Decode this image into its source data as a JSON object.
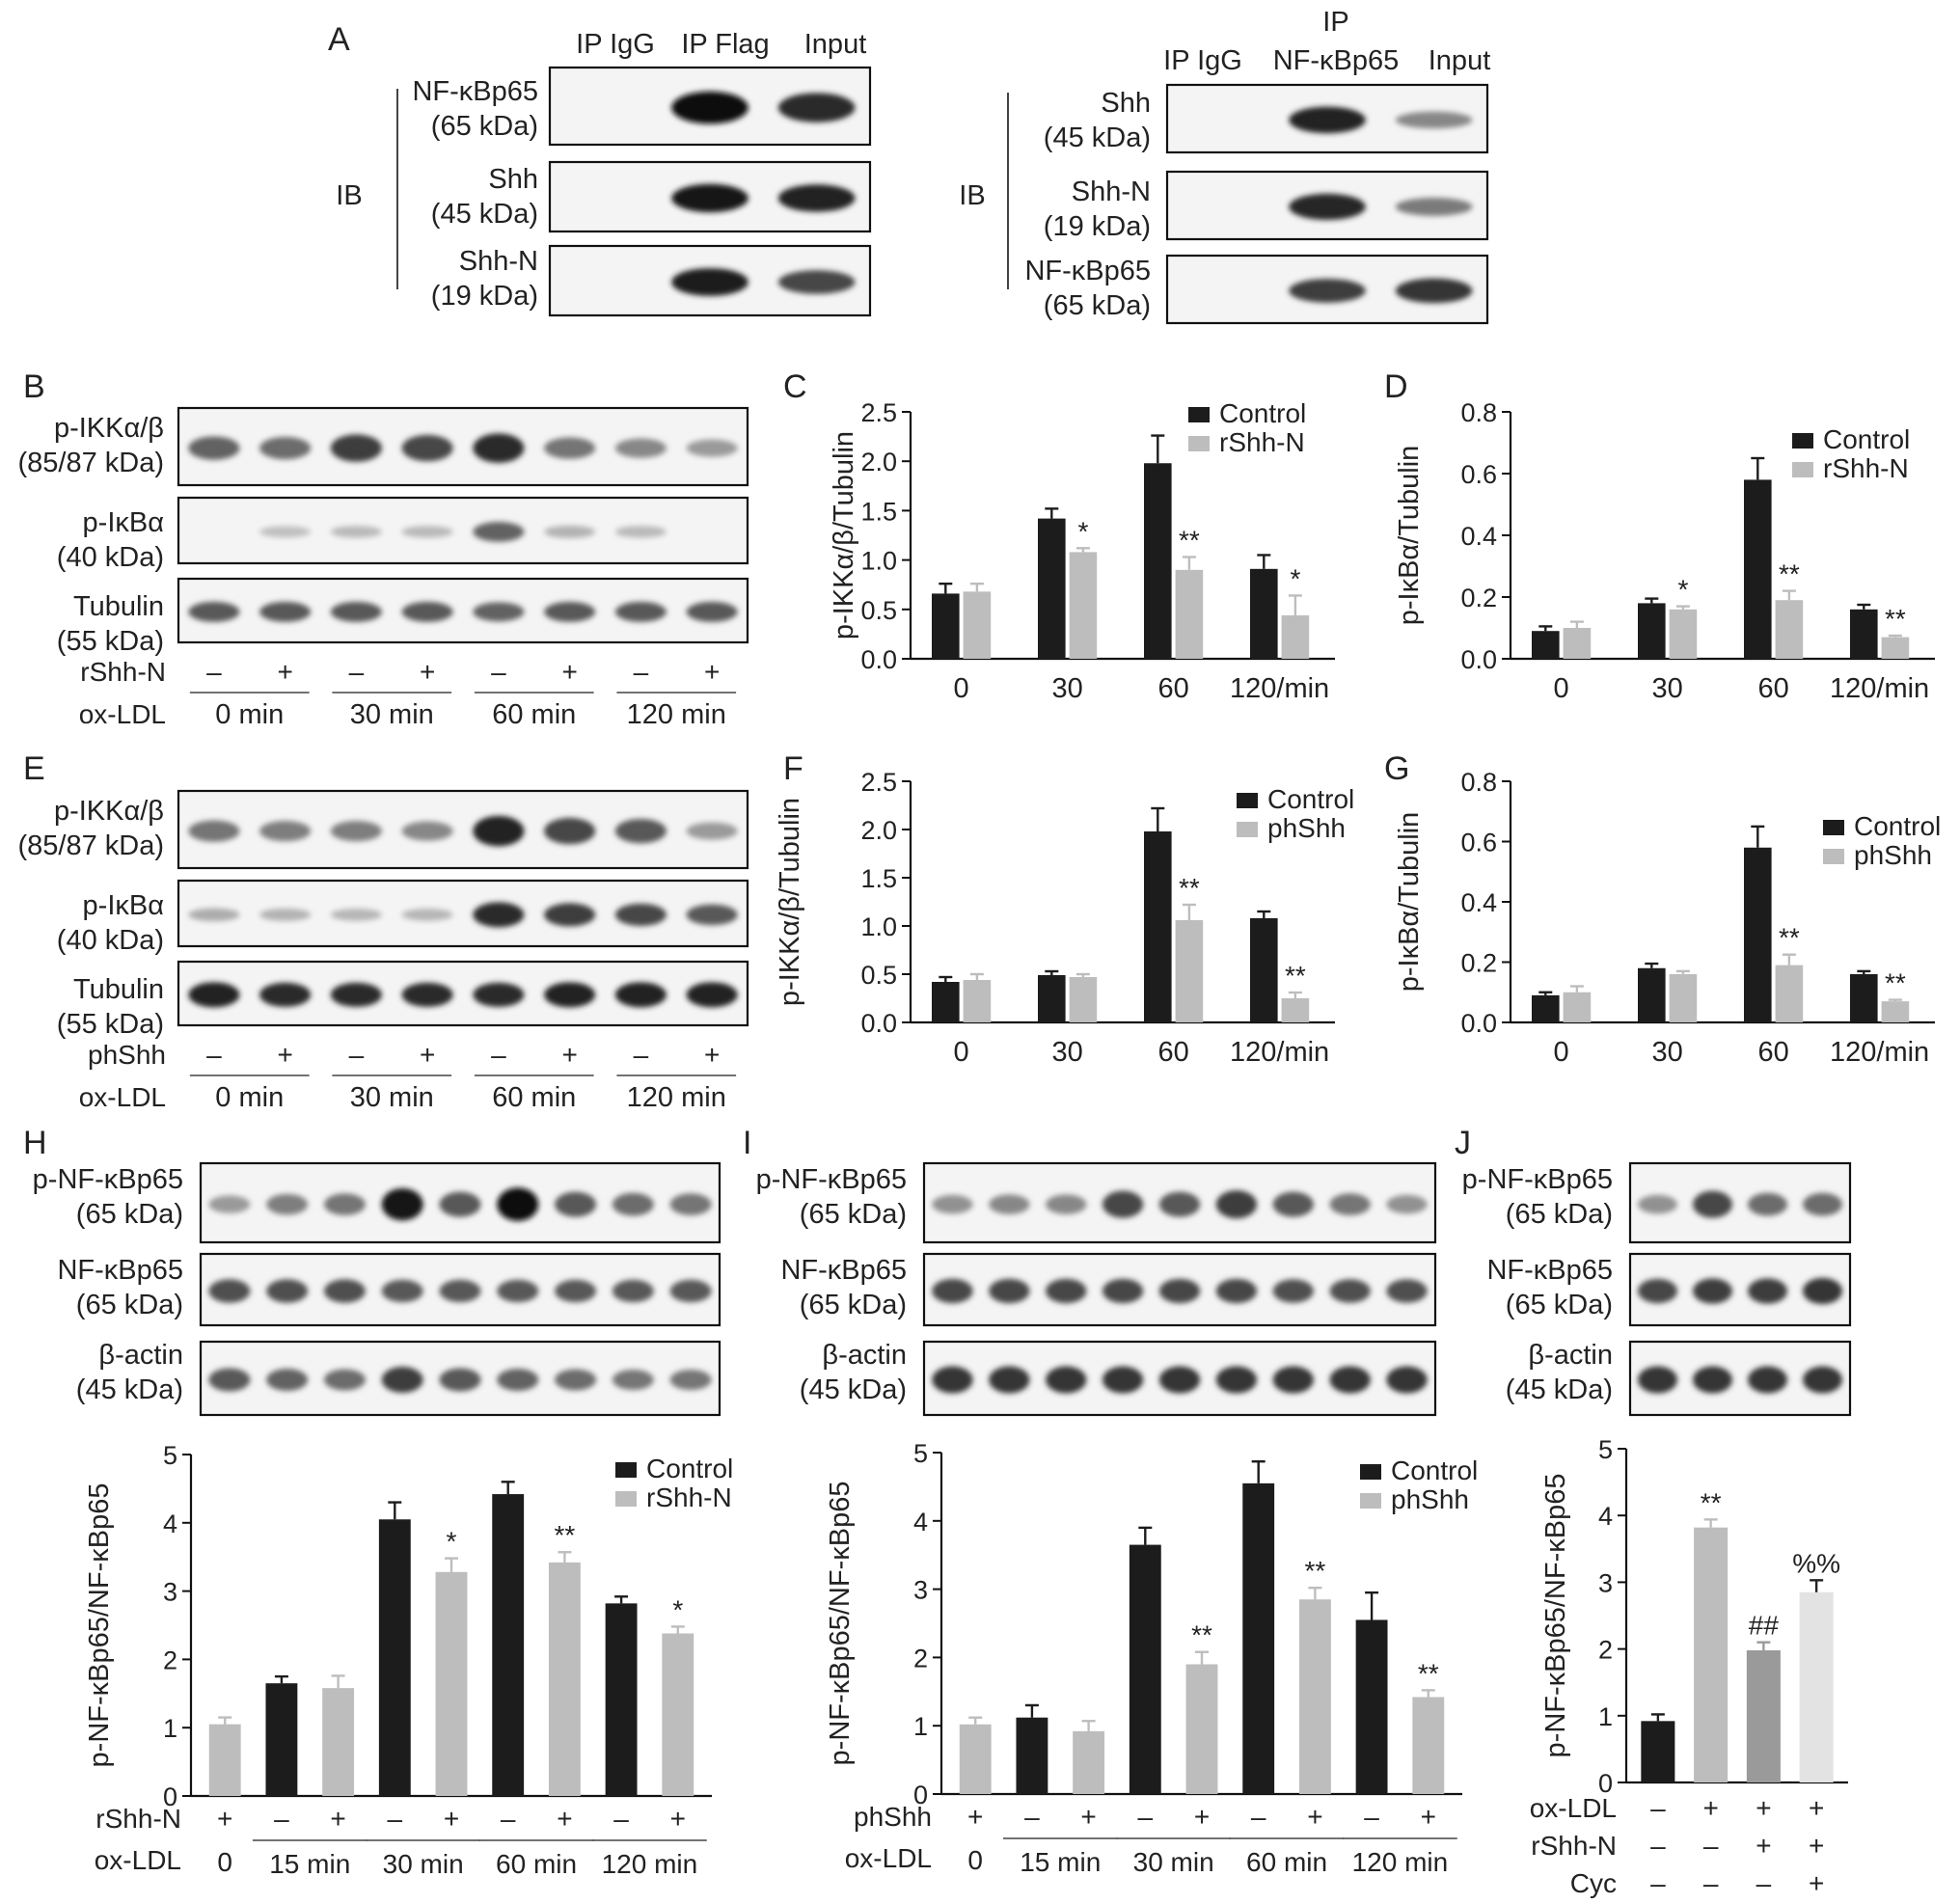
{
  "panel_letters": [
    "A",
    "B",
    "C",
    "D",
    "E",
    "F",
    "G",
    "H",
    "I",
    "J"
  ],
  "panel_a": {
    "left": {
      "headers": [
        "IP IgG",
        "IP Flag",
        "Input"
      ],
      "ib_label": "IB",
      "rows": [
        {
          "name": "NF-κBp65",
          "kda": "(65 kDa)"
        },
        {
          "name": "Shh",
          "kda": "(45 kDa)"
        },
        {
          "name": "Shh-N",
          "kda": "(19 kDa)"
        }
      ]
    },
    "right": {
      "headers": [
        "IP IgG",
        "IP",
        "NF-κBp65",
        "Input"
      ],
      "ib_label": "IB",
      "rows": [
        {
          "name": "Shh",
          "kda": "(45 kDa)"
        },
        {
          "name": "Shh-N",
          "kda": "(19 kDa)"
        },
        {
          "name": "NF-κBp65",
          "kda": "(65 kDa)"
        }
      ]
    }
  },
  "panel_b": {
    "rows": [
      {
        "name": "p-IKKα/β",
        "kda": "(85/87 kDa)"
      },
      {
        "name": "p-IκBα",
        "kda": "(40 kDa)"
      },
      {
        "name": "Tubulin",
        "kda": "(55 kDa)"
      }
    ],
    "treat_label": "rShh-N",
    "oxldl_label": "ox-LDL",
    "signs": [
      "–",
      "+",
      "–",
      "+",
      "–",
      "+",
      "–",
      "+"
    ],
    "times": [
      "0 min",
      "30 min",
      "60 min",
      "120 min"
    ]
  },
  "panel_e": {
    "rows": [
      {
        "name": "p-IKKα/β",
        "kda": "(85/87 kDa)"
      },
      {
        "name": "p-IκBα",
        "kda": "(40 kDa)"
      },
      {
        "name": "Tubulin",
        "kda": "(55 kDa)"
      }
    ],
    "treat_label": "phShh",
    "oxldl_label": "ox-LDL",
    "signs": [
      "–",
      "+",
      "–",
      "+",
      "–",
      "+",
      "–",
      "+"
    ],
    "times": [
      "0 min",
      "30 min",
      "60 min",
      "120 min"
    ]
  },
  "panel_h_blot": {
    "rows": [
      {
        "name": "p-NF-κBp65",
        "kda": "(65 kDa)"
      },
      {
        "name": "NF-κBp65",
        "kda": "(65 kDa)"
      },
      {
        "name": "β-actin",
        "kda": "(45 kDa)"
      }
    ]
  },
  "panel_i_blot": {
    "rows": [
      {
        "name": "p-NF-κBp65",
        "kda": "(65 kDa)"
      },
      {
        "name": "NF-κBp65",
        "kda": "(65 kDa)"
      },
      {
        "name": "β-actin",
        "kda": "(45 kDa)"
      }
    ]
  },
  "panel_j_blot": {
    "rows": [
      {
        "name": "p-NF-κBp65",
        "kda": "(65 kDa)"
      },
      {
        "name": "NF-κBp65",
        "kda": "(65 kDa)"
      },
      {
        "name": "β-actin",
        "kda": "(45 kDa)"
      }
    ]
  },
  "chart_data": [
    {
      "panel": "C",
      "type": "bar",
      "categories": [
        "0",
        "30",
        "60",
        "120/min"
      ],
      "ylabel": "p-IKKα/β/Tubulin",
      "ylim": [
        0,
        2.5
      ],
      "yticks": [
        0.0,
        0.5,
        1.0,
        1.5,
        2.0,
        2.5
      ],
      "ytick_labels": [
        "0.0",
        "0.5",
        "1.0",
        "1.5",
        "2.0",
        "2.5"
      ],
      "legend_position": "top-right",
      "series": [
        {
          "name": "Control",
          "color": "#1c1c1c",
          "values": [
            0.66,
            1.42,
            1.98,
            0.91
          ],
          "errors": [
            0.1,
            0.1,
            0.28,
            0.14
          ],
          "marks": [
            "",
            "",
            "",
            ""
          ]
        },
        {
          "name": "rShh-N",
          "color": "#bdbdbd",
          "values": [
            0.68,
            1.08,
            0.9,
            0.44
          ],
          "errors": [
            0.08,
            0.04,
            0.13,
            0.2
          ],
          "marks": [
            "",
            "*",
            "**",
            "*"
          ]
        }
      ]
    },
    {
      "panel": "D",
      "type": "bar",
      "categories": [
        "0",
        "30",
        "60",
        "120/min"
      ],
      "ylabel": "p-IκBα/Tubulin",
      "ylim": [
        0,
        0.8
      ],
      "yticks": [
        0.0,
        0.2,
        0.4,
        0.6,
        0.8
      ],
      "ytick_labels": [
        "0.0",
        "0.2",
        "0.4",
        "0.6",
        "0.8"
      ],
      "legend_position": "top-right",
      "series": [
        {
          "name": "Control",
          "color": "#1c1c1c",
          "values": [
            0.09,
            0.18,
            0.58,
            0.16
          ],
          "errors": [
            0.015,
            0.015,
            0.07,
            0.015
          ],
          "marks": [
            "",
            "",
            "",
            ""
          ]
        },
        {
          "name": "rShh-N",
          "color": "#bdbdbd",
          "values": [
            0.1,
            0.16,
            0.19,
            0.07
          ],
          "errors": [
            0.02,
            0.01,
            0.03,
            0.005
          ],
          "marks": [
            "",
            "*",
            "**",
            "**"
          ]
        }
      ]
    },
    {
      "panel": "F",
      "type": "bar",
      "categories": [
        "0",
        "30",
        "60",
        "120/min"
      ],
      "ylabel": "p-IKKα/β/Tubulin",
      "ylim": [
        0,
        2.5
      ],
      "yticks": [
        0.0,
        0.5,
        1.0,
        1.5,
        2.0,
        2.5
      ],
      "ytick_labels": [
        "0.0",
        "0.5",
        "1.0",
        "1.5",
        "2.0",
        "2.5"
      ],
      "legend_position": "top-right",
      "series": [
        {
          "name": "Control",
          "color": "#1c1c1c",
          "values": [
            0.42,
            0.49,
            1.98,
            1.08
          ],
          "errors": [
            0.05,
            0.04,
            0.24,
            0.07
          ],
          "marks": [
            "",
            "",
            "",
            ""
          ]
        },
        {
          "name": "phShh",
          "color": "#bdbdbd",
          "values": [
            0.44,
            0.47,
            1.06,
            0.25
          ],
          "errors": [
            0.06,
            0.03,
            0.16,
            0.06
          ],
          "marks": [
            "",
            "",
            "**",
            "**"
          ]
        }
      ]
    },
    {
      "panel": "G",
      "type": "bar",
      "categories": [
        "0",
        "30",
        "60",
        "120/min"
      ],
      "ylabel": "p-IκBα/Tubulin",
      "ylim": [
        0,
        0.8
      ],
      "yticks": [
        0.0,
        0.2,
        0.4,
        0.6,
        0.8
      ],
      "ytick_labels": [
        "0.0",
        "0.2",
        "0.4",
        "0.6",
        "0.8"
      ],
      "legend_position": "top-right",
      "series": [
        {
          "name": "Control",
          "color": "#1c1c1c",
          "values": [
            0.09,
            0.18,
            0.58,
            0.16
          ],
          "errors": [
            0.01,
            0.015,
            0.07,
            0.01
          ],
          "marks": [
            "",
            "",
            "",
            ""
          ]
        },
        {
          "name": "phShh",
          "color": "#bdbdbd",
          "values": [
            0.1,
            0.16,
            0.19,
            0.07
          ],
          "errors": [
            0.02,
            0.01,
            0.035,
            0.005
          ],
          "marks": [
            "",
            "",
            "**",
            "**"
          ]
        }
      ]
    },
    {
      "panel": "H",
      "type": "bar",
      "ylabel": "p-NF-κBp65/NF-κBp65",
      "ylim": [
        0,
        5
      ],
      "yticks": [
        0,
        1,
        2,
        3,
        4,
        5
      ],
      "ytick_labels": [
        "0",
        "1",
        "2",
        "3",
        "4",
        "5"
      ],
      "legend_position": "top-right",
      "legend": [
        {
          "name": "Control",
          "color": "#1c1c1c"
        },
        {
          "name": "rShh-N",
          "color": "#bdbdbd"
        }
      ],
      "bars": [
        {
          "value": 1.05,
          "error": 0.1,
          "color": "#bdbdbd",
          "mark": ""
        },
        {
          "value": 1.65,
          "error": 0.1,
          "color": "#1c1c1c",
          "mark": ""
        },
        {
          "value": 1.58,
          "error": 0.18,
          "color": "#bdbdbd",
          "mark": ""
        },
        {
          "value": 4.05,
          "error": 0.25,
          "color": "#1c1c1c",
          "mark": ""
        },
        {
          "value": 3.28,
          "error": 0.2,
          "color": "#bdbdbd",
          "mark": "*"
        },
        {
          "value": 4.42,
          "error": 0.18,
          "color": "#1c1c1c",
          "mark": ""
        },
        {
          "value": 3.42,
          "error": 0.15,
          "color": "#bdbdbd",
          "mark": "**"
        },
        {
          "value": 2.82,
          "error": 0.1,
          "color": "#1c1c1c",
          "mark": ""
        },
        {
          "value": 2.38,
          "error": 0.1,
          "color": "#bdbdbd",
          "mark": "*"
        }
      ],
      "row1_label": "rShh-N",
      "row1_signs": [
        "+",
        "–",
        "+",
        "–",
        "+",
        "–",
        "+",
        "–",
        "+"
      ],
      "row2_label": "ox-LDL",
      "row2_times": [
        "0",
        "15 min",
        "30 min",
        "60 min",
        "120 min"
      ]
    },
    {
      "panel": "I",
      "type": "bar",
      "ylabel": "p-NF-κBp65/NF-κBp65",
      "ylim": [
        0,
        5
      ],
      "yticks": [
        0,
        1,
        2,
        3,
        4,
        5
      ],
      "ytick_labels": [
        "0",
        "1",
        "2",
        "3",
        "4",
        "5"
      ],
      "legend_position": "top-right",
      "legend": [
        {
          "name": "Control",
          "color": "#1c1c1c"
        },
        {
          "name": "phShh",
          "color": "#bdbdbd"
        }
      ],
      "bars": [
        {
          "value": 1.02,
          "error": 0.1,
          "color": "#bdbdbd",
          "mark": ""
        },
        {
          "value": 1.12,
          "error": 0.18,
          "color": "#1c1c1c",
          "mark": ""
        },
        {
          "value": 0.92,
          "error": 0.15,
          "color": "#bdbdbd",
          "mark": ""
        },
        {
          "value": 3.65,
          "error": 0.25,
          "color": "#1c1c1c",
          "mark": ""
        },
        {
          "value": 1.9,
          "error": 0.18,
          "color": "#bdbdbd",
          "mark": "**"
        },
        {
          "value": 4.55,
          "error": 0.32,
          "color": "#1c1c1c",
          "mark": ""
        },
        {
          "value": 2.85,
          "error": 0.17,
          "color": "#bdbdbd",
          "mark": "**"
        },
        {
          "value": 2.55,
          "error": 0.4,
          "color": "#1c1c1c",
          "mark": ""
        },
        {
          "value": 1.42,
          "error": 0.1,
          "color": "#bdbdbd",
          "mark": "**"
        }
      ],
      "row1_label": "phShh",
      "row1_signs": [
        "+",
        "–",
        "+",
        "–",
        "+",
        "–",
        "+",
        "–",
        "+"
      ],
      "row2_label": "ox-LDL",
      "row2_times": [
        "0",
        "15 min",
        "30 min",
        "60 min",
        "120 min"
      ]
    },
    {
      "panel": "J",
      "type": "bar",
      "ylabel": "p-NF-κBp65/NF-κBp65",
      "ylim": [
        0,
        5
      ],
      "yticks": [
        0,
        1,
        2,
        3,
        4,
        5
      ],
      "ytick_labels": [
        "0",
        "1",
        "2",
        "3",
        "4",
        "5"
      ],
      "bars": [
        {
          "value": 0.92,
          "error": 0.1,
          "color": "#1c1c1c",
          "mark": ""
        },
        {
          "value": 3.82,
          "error": 0.12,
          "color": "#bdbdbd",
          "mark": "**"
        },
        {
          "value": 1.98,
          "error": 0.12,
          "color": "#9a9a9a",
          "mark": "##"
        },
        {
          "value": 2.85,
          "error": 0.18,
          "color": "#e3e3e3",
          "mark": "%%"
        }
      ],
      "rows": [
        {
          "label": "ox-LDL",
          "signs": [
            "–",
            "+",
            "+",
            "+"
          ]
        },
        {
          "label": "rShh-N",
          "signs": [
            "–",
            "–",
            "+",
            "+"
          ]
        },
        {
          "label": "Cyc",
          "signs": [
            "–",
            "–",
            "–",
            "+"
          ]
        }
      ]
    }
  ]
}
